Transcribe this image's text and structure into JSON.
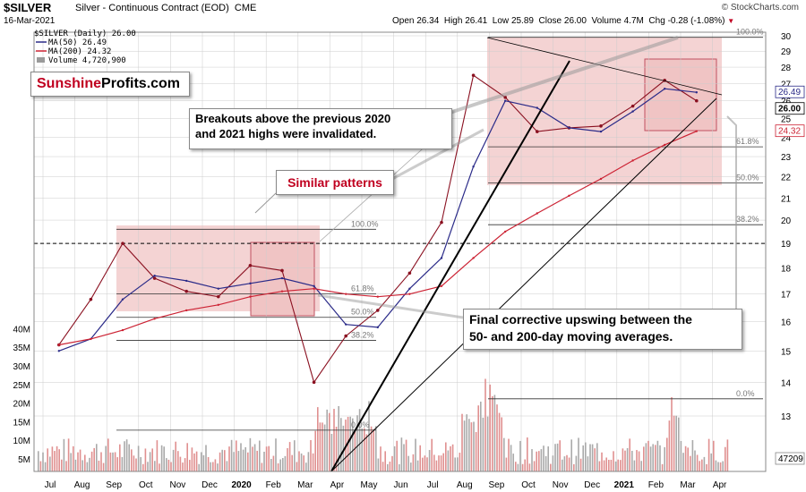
{
  "header": {
    "symbol": "$SILVER",
    "name": "Silver - Continuous Contract (EOD)",
    "exchange": "CME",
    "date": "16-Mar-2021",
    "brand": "© StockCharts.com",
    "open_label": "Open",
    "open": "26.34",
    "high_label": "High",
    "high": "26.41",
    "low_label": "Low",
    "low": "25.89",
    "close_label": "Close",
    "close": "26.00",
    "volume_label": "Volume",
    "volume": "4.7M",
    "chg_label": "Chg",
    "chg": "-0.28 (-1.08%)"
  },
  "legend": {
    "price": "$SILVER (Daily) 26.00",
    "ma50": "MA(50) 26.49",
    "ma200": "MA(200) 24.32",
    "volume": "Volume 4,720,900"
  },
  "logo": {
    "part1": "Sunshine",
    "part2": "Profits.com"
  },
  "annotations": {
    "breakouts": [
      "Breakouts above the previous 2020",
      "and 2021 highs were invalidated."
    ],
    "similar": "Similar patterns",
    "final": [
      "Final corrective upswing between the",
      "50- and 200-day moving averages."
    ]
  },
  "colors": {
    "price": "#8a1020",
    "ma50": "#2a2a88",
    "ma200": "#cc2233",
    "zone": "#f0c4c4",
    "vol_up": "#aaaaaa",
    "vol_down": "#e09090",
    "brand_red": "#c00020"
  },
  "chart_data": {
    "type": "line",
    "title": "$SILVER Silver - Continuous Contract (EOD)",
    "y_axis": {
      "min": 12,
      "max": 30.5,
      "ticks": [
        "13",
        "14",
        "15",
        "16",
        "17",
        "18",
        "19",
        "20",
        "21",
        "22",
        "23",
        "24",
        "25",
        "26",
        "27",
        "28",
        "29",
        "30"
      ],
      "side": "right",
      "scale": "log"
    },
    "volume_axis": {
      "ticks": [
        "5M",
        "10M",
        "15M",
        "20M",
        "25M",
        "30M",
        "35M",
        "40M"
      ],
      "side": "left"
    },
    "x_labels": [
      "Jul",
      "Aug",
      "Sep",
      "Oct",
      "Nov",
      "Dec",
      "2020",
      "Feb",
      "Mar",
      "Apr",
      "May",
      "Jun",
      "Jul",
      "Aug",
      "Sep",
      "Oct",
      "Nov",
      "Dec",
      "2021",
      "Feb",
      "Mar",
      "Apr"
    ],
    "grid": true,
    "price_tags": {
      "ma50": "26.49",
      "close": "26.00",
      "ma200": "24.32",
      "volume": "47209"
    },
    "series": [
      {
        "name": "$SILVER (Daily)",
        "x": [
          "2019-07",
          "2019-08",
          "2019-09",
          "2019-10",
          "2019-11",
          "2019-12",
          "2020-01",
          "2020-02",
          "2020-03",
          "2020-04",
          "2020-05",
          "2020-06",
          "2020-07",
          "2020-08",
          "2020-09",
          "2020-10",
          "2020-11",
          "2020-12",
          "2021-01",
          "2021-02",
          "2021-03"
        ],
        "values": [
          15.2,
          16.8,
          19.0,
          17.6,
          17.1,
          16.9,
          18.1,
          17.9,
          14.0,
          15.5,
          16.4,
          17.8,
          19.9,
          27.5,
          26.2,
          24.3,
          24.5,
          24.6,
          25.7,
          27.2,
          26.0
        ]
      },
      {
        "name": "MA(50)",
        "x": [
          "2019-07",
          "2019-08",
          "2019-09",
          "2019-10",
          "2019-11",
          "2019-12",
          "2020-01",
          "2020-02",
          "2020-03",
          "2020-04",
          "2020-05",
          "2020-06",
          "2020-07",
          "2020-08",
          "2020-09",
          "2020-10",
          "2020-11",
          "2020-12",
          "2021-01",
          "2021-02",
          "2021-03"
        ],
        "values": [
          15.0,
          15.4,
          16.8,
          17.7,
          17.5,
          17.2,
          17.4,
          17.6,
          17.3,
          15.9,
          15.8,
          17.2,
          18.4,
          22.5,
          26.0,
          25.6,
          24.5,
          24.3,
          25.4,
          26.7,
          26.49
        ]
      },
      {
        "name": "MA(200)",
        "x": [
          "2019-07",
          "2019-08",
          "2019-09",
          "2019-10",
          "2019-11",
          "2019-12",
          "2020-01",
          "2020-02",
          "2020-03",
          "2020-04",
          "2020-05",
          "2020-06",
          "2020-07",
          "2020-08",
          "2020-09",
          "2020-10",
          "2020-11",
          "2020-12",
          "2021-01",
          "2021-02",
          "2021-03"
        ],
        "values": [
          15.2,
          15.4,
          15.7,
          16.1,
          16.4,
          16.6,
          16.9,
          17.1,
          17.2,
          17.0,
          16.9,
          17.0,
          17.3,
          18.4,
          19.5,
          20.3,
          21.1,
          21.9,
          22.8,
          23.6,
          24.32
        ]
      }
    ],
    "fib_levels_2020": [
      "100.0%",
      "61.8%",
      "50.0%",
      "38.2%",
      "0.0%"
    ],
    "fib_levels_2021": [
      "100.0%",
      "61.8%",
      "50.0%",
      "38.2%",
      "0.0%"
    ]
  }
}
